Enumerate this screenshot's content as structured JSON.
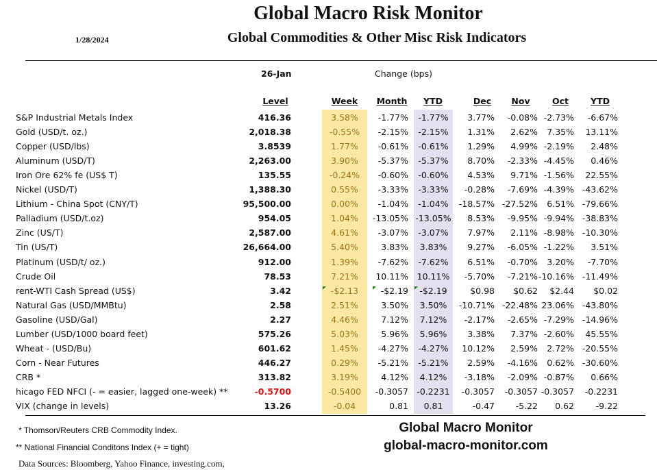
{
  "header": {
    "title": "Global Macro Risk Monitor",
    "subtitle": "Global Commodities & Other Misc Risk Indicators",
    "date": "1/28/2024",
    "as_of": "26-Jan",
    "change_label": "Change (bps)"
  },
  "columns": {
    "level": "Level",
    "week": "Week",
    "month": "Month",
    "ytd": "YTD",
    "dec": "Dec",
    "nov": "Nov",
    "oct": "Oct",
    "ytd_prev": "YTD"
  },
  "colors": {
    "week_shade": "#fbe9a3",
    "ytd_shade": "#e4e0ef",
    "week_text": "#9a7414",
    "negative_red": "#e01010"
  },
  "rows": [
    {
      "label": "S&P Industrial Metals Index",
      "level": "416.36",
      "week": "3.58%",
      "month": "-1.77%",
      "ytd": "-1.77%",
      "dec": "3.77%",
      "nov": "-0.08%",
      "oct": "-2.73%",
      "ytd_prev": "-6.67%"
    },
    {
      "label": "Gold (USD/t. oz.)",
      "level": "2,018.38",
      "week": "-0.55%",
      "month": "-2.15%",
      "ytd": "-2.15%",
      "dec": "1.31%",
      "nov": "2.62%",
      "oct": "7.35%",
      "ytd_prev": "13.11%"
    },
    {
      "label": "Copper (USD/lbs)",
      "level": "3.8539",
      "week": "1.77%",
      "month": "-0.61%",
      "ytd": "-0.61%",
      "dec": "1.29%",
      "nov": "4.99%",
      "oct": "-2.19%",
      "ytd_prev": "2.48%"
    },
    {
      "label": "Aluminum (USD/T)",
      "level": "2,263.00",
      "week": "3.90%",
      "month": "-5.37%",
      "ytd": "-5.37%",
      "dec": "8.70%",
      "nov": "-2.33%",
      "oct": "-4.45%",
      "ytd_prev": "0.46%"
    },
    {
      "label": "Iron Ore 62% fe (US$ T)",
      "level": "135.55",
      "week": "-0.24%",
      "month": "-0.60%",
      "ytd": "-0.60%",
      "dec": "4.53%",
      "nov": "9.71%",
      "oct": "-1.56%",
      "ytd_prev": "22.55%"
    },
    {
      "label": "Nickel (USD/T)",
      "level": "1,388.30",
      "week": "0.55%",
      "month": "-3.33%",
      "ytd": "-3.33%",
      "dec": "-0.28%",
      "nov": "-7.69%",
      "oct": "-4.39%",
      "ytd_prev": "-43.62%"
    },
    {
      "label": "Lithium - China Spot (CNY/T)",
      "level": "95,500.00",
      "week": "0.00%",
      "month": "-1.04%",
      "ytd": "-1.04%",
      "dec": "-18.57%",
      "nov": "-27.52%",
      "oct": "6.51%",
      "ytd_prev": "-79.66%"
    },
    {
      "label": "Palladium (USD/t.oz)",
      "level": "954.05",
      "week": "1.04%",
      "month": "-13.05%",
      "ytd": "-13.05%",
      "dec": "8.53%",
      "nov": "-9.95%",
      "oct": "-9.94%",
      "ytd_prev": "-38.83%"
    },
    {
      "label": "Zinc (US/T)",
      "level": "2,587.00",
      "week": "4.61%",
      "month": "-3.07%",
      "ytd": "-3.07%",
      "dec": "7.97%",
      "nov": "2.11%",
      "oct": "-8.98%",
      "ytd_prev": "-10.30%"
    },
    {
      "label": "Tin (US/T)",
      "level": "26,664.00",
      "week": "5.40%",
      "month": "3.83%",
      "ytd": "3.83%",
      "dec": "9.27%",
      "nov": "-6.05%",
      "oct": "-1.22%",
      "ytd_prev": "3.51%"
    },
    {
      "label": "Platinum (USD/t/ oz.)",
      "level": "912.00",
      "week": "1.39%",
      "month": "-7.62%",
      "ytd": "-7.62%",
      "dec": "6.51%",
      "nov": "-0.70%",
      "oct": "3.20%",
      "ytd_prev": "-7.70%"
    },
    {
      "label": "Crude Oil",
      "level": "78.53",
      "week": "7.21%",
      "month": "10.11%",
      "ytd": "10.11%",
      "dec": "-5.70%",
      "nov": "-7.21%",
      "oct": "-10.16%",
      "ytd_prev": "-11.49%"
    },
    {
      "label": "rent-WTI Cash Spread (US$)",
      "level": "3.42",
      "week": "-$2.13",
      "month": "-$2.19",
      "ytd": "-$2.19",
      "dec": "$0.98",
      "nov": "$0.62",
      "oct": "$2.44",
      "ytd_prev": "$0.02",
      "flag": true
    },
    {
      "label": "Natural Gas  (USD/MMBtu)",
      "level": "2.58",
      "week": "2.51%",
      "month": "3.50%",
      "ytd": "3.50%",
      "dec": "-10.71%",
      "nov": "-22.48%",
      "oct": "23.06%",
      "ytd_prev": "-43.80%"
    },
    {
      "label": "Gasoline (USD/Gal)",
      "level": "2.27",
      "week": "4.46%",
      "month": "7.12%",
      "ytd": "7.12%",
      "dec": "-2.17%",
      "nov": "-2.65%",
      "oct": "-7.29%",
      "ytd_prev": "-14.96%"
    },
    {
      "label": "Lumber (USD/1000 board feet)",
      "level": "575.26",
      "week": "5.03%",
      "month": "5.96%",
      "ytd": "5.96%",
      "dec": "3.38%",
      "nov": "7.37%",
      "oct": "-2.60%",
      "ytd_prev": "45.55%"
    },
    {
      "label": "Wheat - (USD/Bu)",
      "level": "601.62",
      "week": "1.45%",
      "month": "-4.27%",
      "ytd": "-4.27%",
      "dec": "10.12%",
      "nov": "2.59%",
      "oct": "2.72%",
      "ytd_prev": "-20.55%"
    },
    {
      "label": "Corn - Near Futures",
      "level": "446.27",
      "week": "0.29%",
      "month": "-5.21%",
      "ytd": "-5.21%",
      "dec": "2.59%",
      "nov": "-4.16%",
      "oct": "0.62%",
      "ytd_prev": "-30.60%"
    },
    {
      "label": "CRB *",
      "level": "313.82",
      "week": "3.19%",
      "month": "4.12%",
      "ytd": "4.12%",
      "dec": "-3.18%",
      "nov": "-2.09%",
      "oct": "-0.87%",
      "ytd_prev": "0.66%"
    },
    {
      "label": "hicago FED NFCI (- = easier, lagged one-week) **",
      "level": "-0.5700",
      "week": "-0.5400",
      "month": "-0.3057",
      "ytd": "-0.2231",
      "dec": "-0.3057",
      "nov": "-0.3057",
      "oct": "-0.3057",
      "ytd_prev": "-0.2231",
      "red_level": true
    },
    {
      "label": "VIX (change in levels)",
      "level": "13.26",
      "week": "-0.04",
      "month": "0.81",
      "ytd": "0.81",
      "dec": "-0.47",
      "nov": "-5.22",
      "oct": "0.62",
      "ytd_prev": "-9.22"
    }
  ],
  "footer": {
    "note1": "*     Thomson/Reuters CRB Commodity Index.",
    "note2": "** National Financial Conditons Index (+ = tight)",
    "sources": "Data Sources:  Bloomberg,  Yahoo Finance, investing.com,",
    "brand": "Global Macro Monitor",
    "site": "global-macro-monitor.com"
  }
}
